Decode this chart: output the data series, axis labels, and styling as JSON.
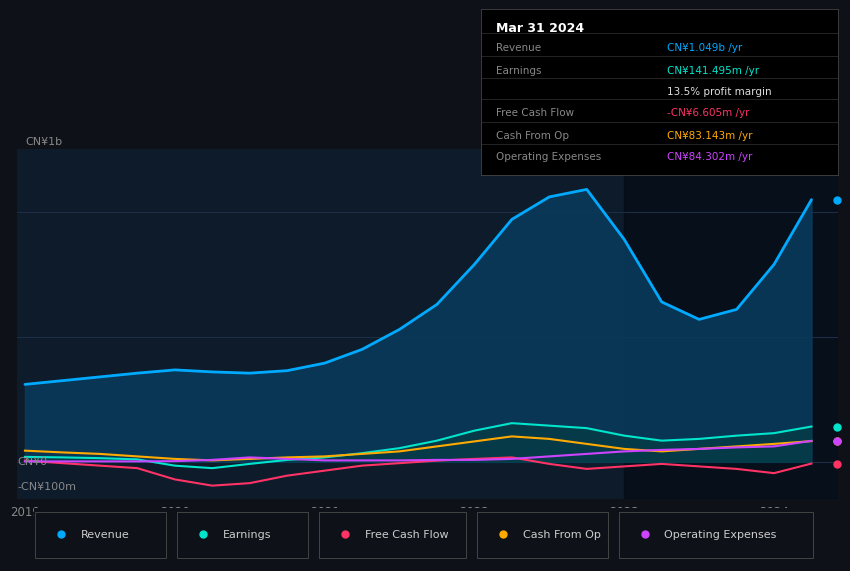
{
  "bg_color": "#0e1117",
  "chart_bg": "#0d1b2a",
  "title_box": {
    "title": "Mar 31 2024",
    "rows": [
      {
        "label": "Revenue",
        "value": "CN¥1.049b /yr",
        "value_color": "#00aaff"
      },
      {
        "label": "Earnings",
        "value": "CN¥141.495m /yr",
        "value_color": "#00e5cc"
      },
      {
        "label": "",
        "value": "13.5% profit margin",
        "value_color": "#dddddd"
      },
      {
        "label": "Free Cash Flow",
        "value": "-CN¥6.605m /yr",
        "value_color": "#ff3366"
      },
      {
        "label": "Cash From Op",
        "value": "CN¥83.143m /yr",
        "value_color": "#ffaa00"
      },
      {
        "label": "Operating Expenses",
        "value": "CN¥84.302m /yr",
        "value_color": "#cc44ff"
      }
    ]
  },
  "ylabel_top": "CN¥1b",
  "ylim": [
    -150000000,
    1250000000
  ],
  "legend": [
    {
      "label": "Revenue",
      "color": "#00aaff"
    },
    {
      "label": "Earnings",
      "color": "#00e5cc"
    },
    {
      "label": "Free Cash Flow",
      "color": "#ff3366"
    },
    {
      "label": "Cash From Op",
      "color": "#ffaa00"
    },
    {
      "label": "Operating Expenses",
      "color": "#cc44ff"
    }
  ],
  "x_years": [
    2019.0,
    2019.25,
    2019.5,
    2019.75,
    2020.0,
    2020.25,
    2020.5,
    2020.75,
    2021.0,
    2021.25,
    2021.5,
    2021.75,
    2022.0,
    2022.25,
    2022.5,
    2022.75,
    2023.0,
    2023.25,
    2023.5,
    2023.75,
    2024.0,
    2024.25
  ],
  "revenue": [
    310000000.0,
    325000000.0,
    340000000.0,
    355000000.0,
    368000000.0,
    360000000.0,
    355000000.0,
    365000000.0,
    395000000.0,
    450000000.0,
    530000000.0,
    630000000.0,
    790000000.0,
    970000000.0,
    1060000000.0,
    1090000000.0,
    890000000.0,
    640000000.0,
    570000000.0,
    610000000.0,
    790000000.0,
    1049000000.0
  ],
  "earnings": [
    20000000.0,
    18000000.0,
    15000000.0,
    10000000.0,
    -15000000.0,
    -25000000.0,
    -8000000.0,
    8000000.0,
    18000000.0,
    35000000.0,
    55000000.0,
    85000000.0,
    125000000.0,
    155000000.0,
    145000000.0,
    135000000.0,
    105000000.0,
    85000000.0,
    92000000.0,
    105000000.0,
    115000000.0,
    141495000.0
  ],
  "free_cash_flow": [
    5000000.0,
    -5000000.0,
    -15000000.0,
    -25000000.0,
    -70000000.0,
    -95000000.0,
    -85000000.0,
    -55000000.0,
    -35000000.0,
    -15000000.0,
    -5000000.0,
    5000000.0,
    12000000.0,
    18000000.0,
    -8000000.0,
    -28000000.0,
    -18000000.0,
    -8000000.0,
    -18000000.0,
    -28000000.0,
    -45000000.0,
    -6605000.0
  ],
  "cash_from_op": [
    45000000.0,
    38000000.0,
    32000000.0,
    22000000.0,
    12000000.0,
    6000000.0,
    12000000.0,
    18000000.0,
    22000000.0,
    32000000.0,
    42000000.0,
    62000000.0,
    82000000.0,
    102000000.0,
    92000000.0,
    72000000.0,
    52000000.0,
    42000000.0,
    52000000.0,
    62000000.0,
    72000000.0,
    83143000.0
  ],
  "operating_expenses": [
    2000000.0,
    2000000.0,
    2000000.0,
    2000000.0,
    3000000.0,
    8000000.0,
    18000000.0,
    12000000.0,
    6000000.0,
    6000000.0,
    6000000.0,
    8000000.0,
    8000000.0,
    12000000.0,
    22000000.0,
    32000000.0,
    42000000.0,
    48000000.0,
    52000000.0,
    58000000.0,
    62000000.0,
    84302000.0
  ],
  "xticks": [
    2019.0,
    2020.0,
    2021.0,
    2022.0,
    2023.0,
    2024.0
  ],
  "xtick_labels": [
    "2019",
    "2020",
    "2021",
    "2022",
    "2023",
    "2024"
  ],
  "shade_x_start": 2023.0
}
